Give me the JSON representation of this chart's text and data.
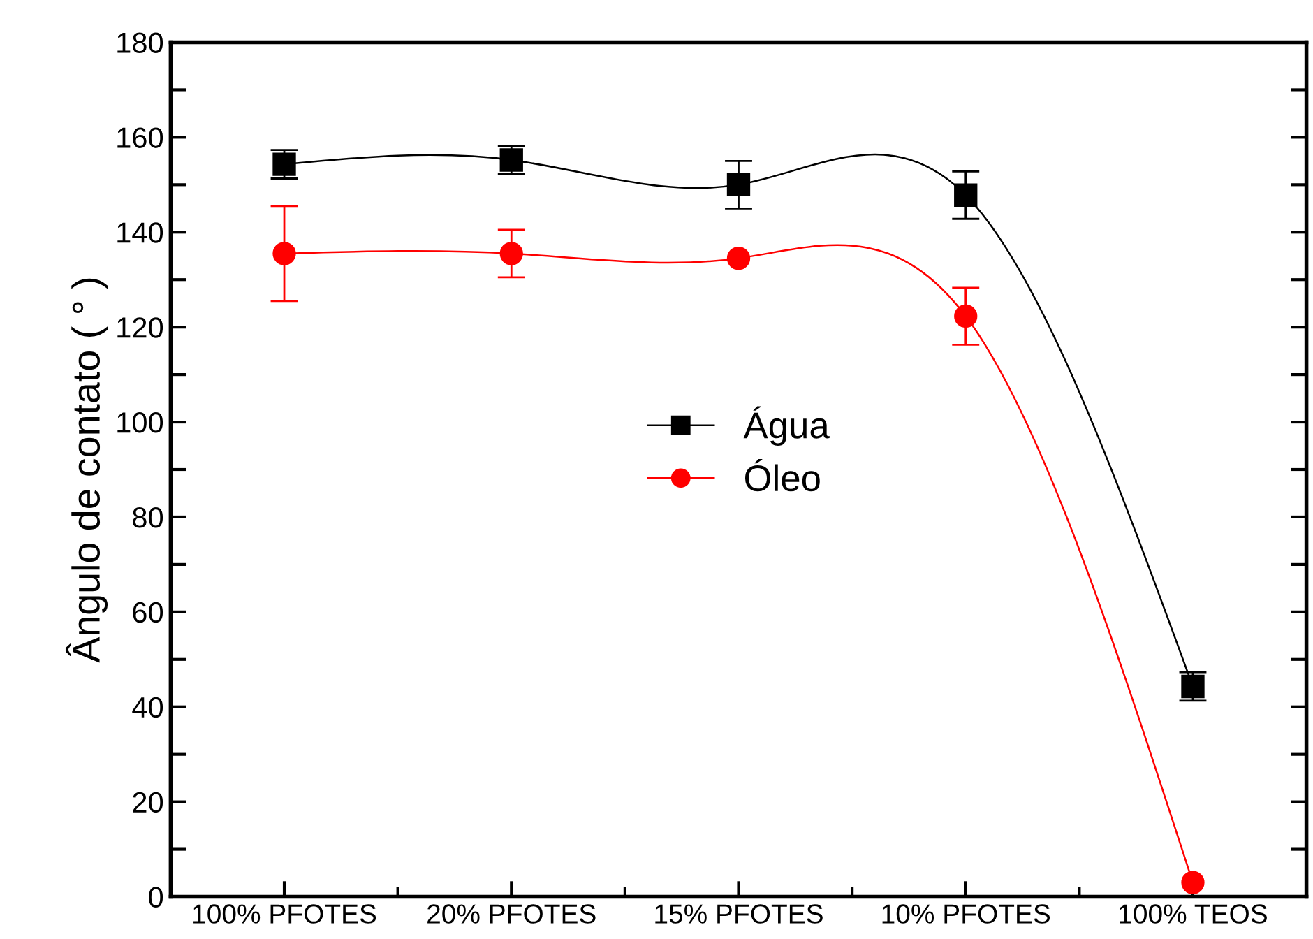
{
  "chart_data": {
    "type": "line",
    "ylabel": "Ângulo de contato ( ° )",
    "categories": [
      "100% PFOTES",
      "20% PFOTES",
      "15% PFOTES",
      "10% PFOTES",
      "100% TEOS"
    ],
    "series": [
      {
        "name": "Água",
        "color": "#000000",
        "marker": "square",
        "values": [
          154.3,
          155.2,
          150.0,
          147.8,
          44.3
        ],
        "errors": [
          3,
          3,
          5,
          5,
          3
        ]
      },
      {
        "name": "Óleo",
        "color": "#ff0000",
        "marker": "circle",
        "values": [
          135.5,
          135.5,
          134.5,
          122.3,
          3
        ],
        "errors": [
          10,
          5,
          null,
          6,
          null
        ]
      }
    ],
    "ylim": [
      0,
      180
    ],
    "yticks": [
      0,
      {
        "value": 10,
        "label": null
      },
      20,
      {
        "value": 30,
        "label": null
      },
      40,
      {
        "value": 50,
        "label": null
      },
      60,
      {
        "value": 70,
        "label": null
      },
      80,
      {
        "value": 90,
        "label": null
      },
      100,
      {
        "value": 110,
        "label": null
      },
      120,
      {
        "value": 130,
        "label": null
      },
      140,
      {
        "value": 150,
        "label": null
      },
      160,
      {
        "value": 170,
        "label": null
      },
      180
    ],
    "legend": "center",
    "grid": false,
    "line_style": "solid"
  }
}
